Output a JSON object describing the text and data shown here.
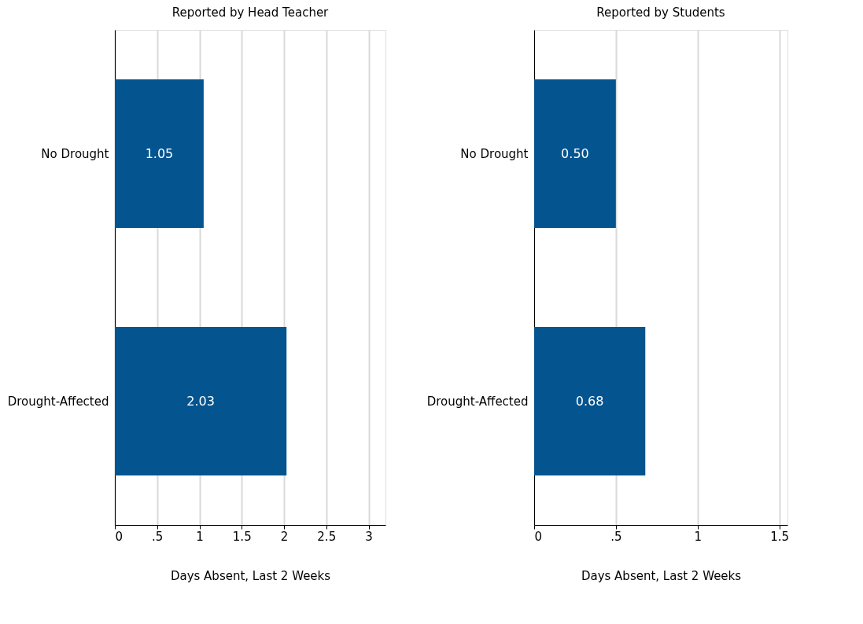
{
  "chart_data": [
    {
      "type": "bar",
      "orientation": "horizontal",
      "title": "Reported by Head Teacher",
      "xlabel": "Days Absent, Last 2 Weeks",
      "categories": [
        "No Drought",
        "Drought-Affected"
      ],
      "values": [
        1.05,
        2.03
      ],
      "value_labels": [
        "1.05",
        "2.03"
      ],
      "color": "#03548f",
      "xlim": [
        0,
        3.2
      ],
      "xticks": [
        0,
        {
          "value": 0.5,
          "label": ".5"
        },
        1,
        1.5,
        2,
        2.5,
        3
      ],
      "grid": "x"
    },
    {
      "type": "bar",
      "orientation": "horizontal",
      "title": "Reported by Students",
      "xlabel": "Days Absent, Last 2 Weeks",
      "categories": [
        "No Drought",
        "Drought-Affected"
      ],
      "values": [
        0.5,
        0.68
      ],
      "value_labels": [
        "0.50",
        "0.68"
      ],
      "color": "#03548f",
      "xlim": [
        0,
        1.55
      ],
      "xticks": [
        0,
        {
          "value": 0.5,
          "label": ".5"
        },
        1,
        1.5
      ],
      "grid": "x"
    }
  ]
}
